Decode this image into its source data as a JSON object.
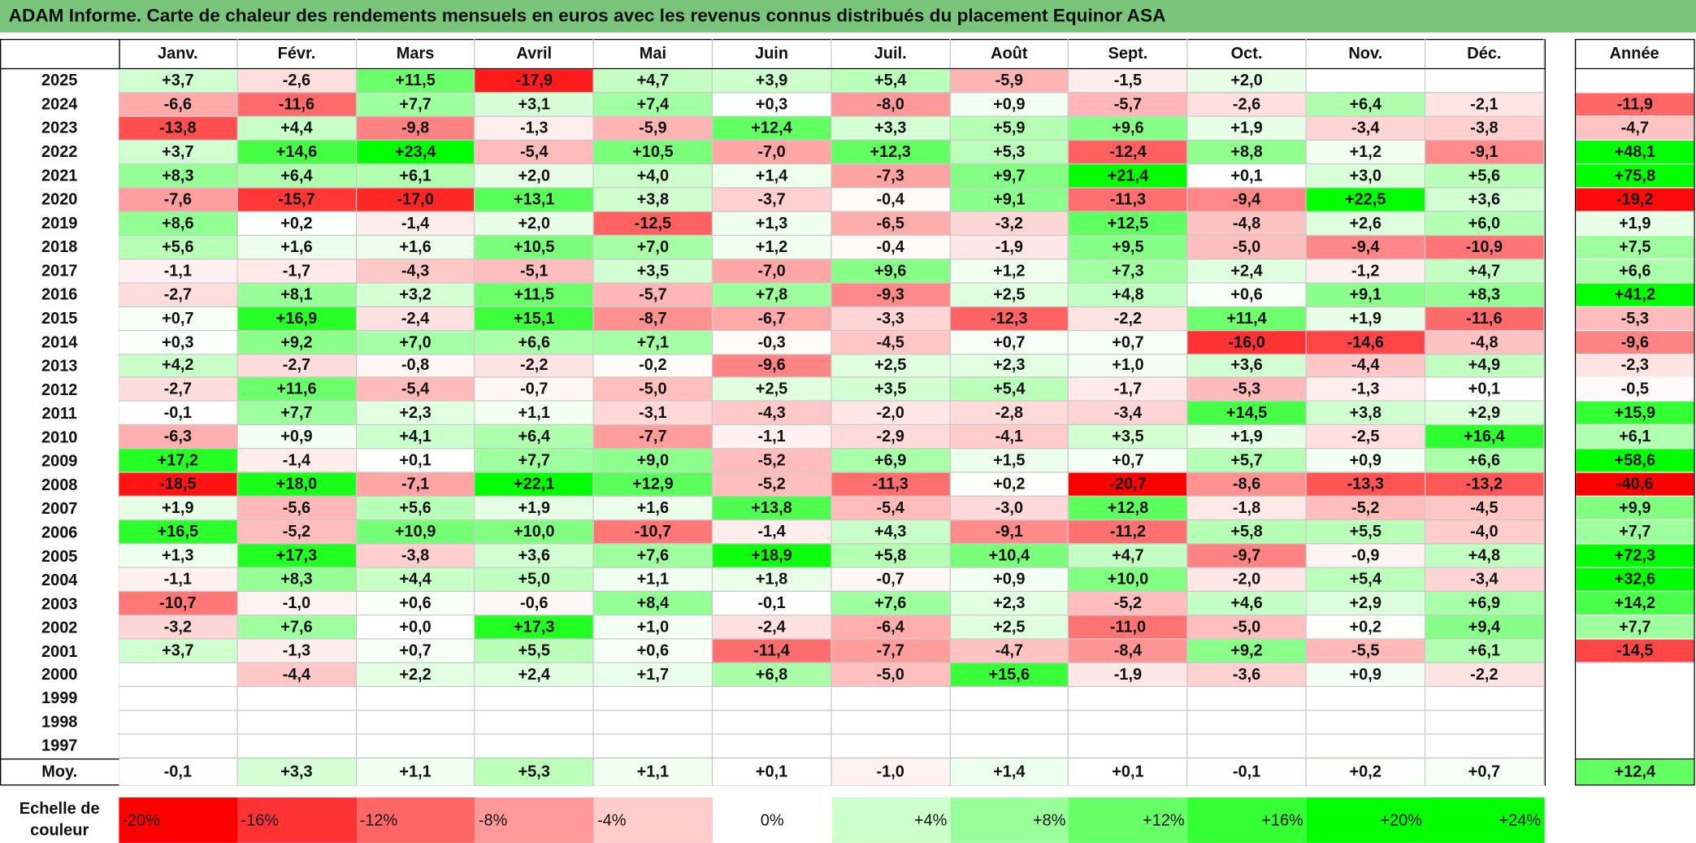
{
  "title": "ADAM Informe. Carte de chaleur des rendements mensuels en euros avec les revenus connus distribués du placement Equinor ASA",
  "months": [
    "Janv.",
    "Févr.",
    "Mars",
    "Avril",
    "Mai",
    "Juin",
    "Juil.",
    "Août",
    "Sept.",
    "Oct.",
    "Nov.",
    "Déc."
  ],
  "annual_header": "Année",
  "rows": [
    {
      "year": "2025",
      "values": [
        "+3,7",
        "-2,6",
        "+11,5",
        "-17,9",
        "+4,7",
        "+3,9",
        "+5,4",
        "-5,9",
        "-1,5",
        "+2,0",
        null,
        null
      ],
      "annual": null
    },
    {
      "year": "2024",
      "values": [
        "-6,6",
        "-11,6",
        "+7,7",
        "+3,1",
        "+7,4",
        "+0,3",
        "-8,0",
        "+0,9",
        "-5,7",
        "-2,6",
        "+6,4",
        "-2,1"
      ],
      "annual": "-11,9"
    },
    {
      "year": "2023",
      "values": [
        "-13,8",
        "+4,4",
        "-9,8",
        "-1,3",
        "-5,9",
        "+12,4",
        "+3,3",
        "+5,9",
        "+9,6",
        "+1,9",
        "-3,4",
        "-3,8"
      ],
      "annual": "-4,7"
    },
    {
      "year": "2022",
      "values": [
        "+3,7",
        "+14,6",
        "+23,4",
        "-5,4",
        "+10,5",
        "-7,0",
        "+12,3",
        "+5,3",
        "-12,4",
        "+8,8",
        "+1,2",
        "-9,1"
      ],
      "annual": "+48,1"
    },
    {
      "year": "2021",
      "values": [
        "+8,3",
        "+6,4",
        "+6,1",
        "+2,0",
        "+4,0",
        "+1,4",
        "-7,3",
        "+9,7",
        "+21,4",
        "+0,1",
        "+3,0",
        "+5,6"
      ],
      "annual": "+75,8"
    },
    {
      "year": "2020",
      "values": [
        "-7,6",
        "-15,7",
        "-17,0",
        "+13,1",
        "+3,8",
        "-3,7",
        "-0,4",
        "+9,1",
        "-11,3",
        "-9,4",
        "+22,5",
        "+3,6"
      ],
      "annual": "-19,2"
    },
    {
      "year": "2019",
      "values": [
        "+8,6",
        "+0,2",
        "-1,4",
        "+2,0",
        "-12,5",
        "+1,3",
        "-6,5",
        "-3,2",
        "+12,5",
        "-4,8",
        "+2,6",
        "+6,0"
      ],
      "annual": "+1,9"
    },
    {
      "year": "2018",
      "values": [
        "+5,6",
        "+1,6",
        "+1,6",
        "+10,5",
        "+7,0",
        "+1,2",
        "-0,4",
        "-1,9",
        "+9,5",
        "-5,0",
        "-9,4",
        "-10,9"
      ],
      "annual": "+7,5"
    },
    {
      "year": "2017",
      "values": [
        "-1,1",
        "-1,7",
        "-4,3",
        "-5,1",
        "+3,5",
        "-7,0",
        "+9,6",
        "+1,2",
        "+7,3",
        "+2,4",
        "-1,2",
        "+4,7"
      ],
      "annual": "+6,6"
    },
    {
      "year": "2016",
      "values": [
        "-2,7",
        "+8,1",
        "+3,2",
        "+11,5",
        "-5,7",
        "+7,8",
        "-9,3",
        "+2,5",
        "+4,8",
        "+0,6",
        "+9,1",
        "+8,3"
      ],
      "annual": "+41,2"
    },
    {
      "year": "2015",
      "values": [
        "+0,7",
        "+16,9",
        "-2,4",
        "+15,1",
        "-8,7",
        "-6,7",
        "-3,3",
        "-12,3",
        "-2,2",
        "+11,4",
        "+1,9",
        "-11,6"
      ],
      "annual": "-5,3"
    },
    {
      "year": "2014",
      "values": [
        "+0,3",
        "+9,2",
        "+7,0",
        "+6,6",
        "+7,1",
        "-0,3",
        "-4,5",
        "+0,7",
        "+0,7",
        "-16,0",
        "-14,6",
        "-4,8"
      ],
      "annual": "-9,6"
    },
    {
      "year": "2013",
      "values": [
        "+4,2",
        "-2,7",
        "-0,8",
        "-2,2",
        "-0,2",
        "-9,6",
        "+2,5",
        "+2,3",
        "+1,0",
        "+3,6",
        "-4,4",
        "+4,9"
      ],
      "annual": "-2,3"
    },
    {
      "year": "2012",
      "values": [
        "-2,7",
        "+11,6",
        "-5,4",
        "-0,7",
        "-5,0",
        "+2,5",
        "+3,5",
        "+5,4",
        "-1,7",
        "-5,3",
        "-1,3",
        "+0,1"
      ],
      "annual": "-0,5"
    },
    {
      "year": "2011",
      "values": [
        "-0,1",
        "+7,7",
        "+2,3",
        "+1,1",
        "-3,1",
        "-4,3",
        "-2,0",
        "-2,8",
        "-3,4",
        "+14,5",
        "+3,8",
        "+2,9"
      ],
      "annual": "+15,9"
    },
    {
      "year": "2010",
      "values": [
        "-6,3",
        "+0,9",
        "+4,1",
        "+6,4",
        "-7,7",
        "-1,1",
        "-2,9",
        "-4,1",
        "+3,5",
        "+1,9",
        "-2,5",
        "+16,4"
      ],
      "annual": "+6,1"
    },
    {
      "year": "2009",
      "values": [
        "+17,2",
        "-1,4",
        "+0,1",
        "+7,7",
        "+9,0",
        "-5,2",
        "+6,9",
        "+1,5",
        "+0,7",
        "+5,7",
        "+0,9",
        "+6,6"
      ],
      "annual": "+58,6"
    },
    {
      "year": "2008",
      "values": [
        "-18,5",
        "+18,0",
        "-7,1",
        "+22,1",
        "+12,9",
        "-5,2",
        "-11,3",
        "+0,2",
        "-20,7",
        "-8,6",
        "-13,3",
        "-13,2"
      ],
      "annual": "-40,6"
    },
    {
      "year": "2007",
      "values": [
        "+1,9",
        "-5,6",
        "+5,6",
        "+1,9",
        "+1,6",
        "+13,8",
        "-5,4",
        "-3,0",
        "+12,8",
        "-1,8",
        "-5,2",
        "-4,5"
      ],
      "annual": "+9,9"
    },
    {
      "year": "2006",
      "values": [
        "+16,5",
        "-5,2",
        "+10,9",
        "+10,0",
        "-10,7",
        "-1,4",
        "+4,3",
        "-9,1",
        "-11,2",
        "+5,8",
        "+5,5",
        "-4,0"
      ],
      "annual": "+7,7"
    },
    {
      "year": "2005",
      "values": [
        "+1,3",
        "+17,3",
        "-3,8",
        "+3,6",
        "+7,6",
        "+18,9",
        "+5,8",
        "+10,4",
        "+4,7",
        "-9,7",
        "-0,9",
        "+4,8"
      ],
      "annual": "+72,3"
    },
    {
      "year": "2004",
      "values": [
        "-1,1",
        "+8,3",
        "+4,4",
        "+5,0",
        "+1,1",
        "+1,8",
        "-0,7",
        "+0,9",
        "+10,0",
        "-2,0",
        "+5,4",
        "-3,4"
      ],
      "annual": "+32,6"
    },
    {
      "year": "2003",
      "values": [
        "-10,7",
        "-1,0",
        "+0,6",
        "-0,6",
        "+8,4",
        "-0,1",
        "+7,6",
        "+2,3",
        "-5,2",
        "+4,6",
        "+2,9",
        "+6,9"
      ],
      "annual": "+14,2"
    },
    {
      "year": "2002",
      "values": [
        "-3,2",
        "+7,6",
        "+0,0",
        "+17,3",
        "+1,0",
        "-2,4",
        "-6,4",
        "+2,5",
        "-11,0",
        "-5,0",
        "+0,2",
        "+9,4"
      ],
      "annual": "+7,7"
    },
    {
      "year": "2001",
      "values": [
        "+3,7",
        "-1,3",
        "+0,7",
        "+5,5",
        "+0,6",
        "-11,4",
        "-7,7",
        "-4,7",
        "-8,4",
        "+9,2",
        "-5,5",
        "+6,1"
      ],
      "annual": "-14,5"
    },
    {
      "year": "2000",
      "values": [
        null,
        "-4,4",
        "+2,2",
        "+2,4",
        "+1,7",
        "+6,8",
        "-5,0",
        "+15,6",
        "-1,9",
        "-3,6",
        "+0,9",
        "-2,2"
      ],
      "annual": null
    },
    {
      "year": "1999",
      "values": [
        null,
        null,
        null,
        null,
        null,
        null,
        null,
        null,
        null,
        null,
        null,
        null
      ],
      "annual": null
    },
    {
      "year": "1998",
      "values": [
        null,
        null,
        null,
        null,
        null,
        null,
        null,
        null,
        null,
        null,
        null,
        null
      ],
      "annual": null
    },
    {
      "year": "1997",
      "values": [
        null,
        null,
        null,
        null,
        null,
        null,
        null,
        null,
        null,
        null,
        null,
        null
      ],
      "annual": null
    }
  ],
  "average": {
    "label": "Moy.",
    "values": [
      "-0,1",
      "+3,3",
      "+1,1",
      "+5,3",
      "+1,1",
      "+0,1",
      "-1,0",
      "+1,4",
      "+0,1",
      "-0,1",
      "+0,2",
      "+0,7"
    ],
    "annual": "+12,4"
  },
  "scale": {
    "label": "Echelle de couleur",
    "steps": [
      "-20%",
      "-16%",
      "-12%",
      "-8%",
      "-4%",
      "0%",
      "+4%",
      "+8%",
      "+12%",
      "+16%",
      "+20%",
      "+24%"
    ]
  }
}
